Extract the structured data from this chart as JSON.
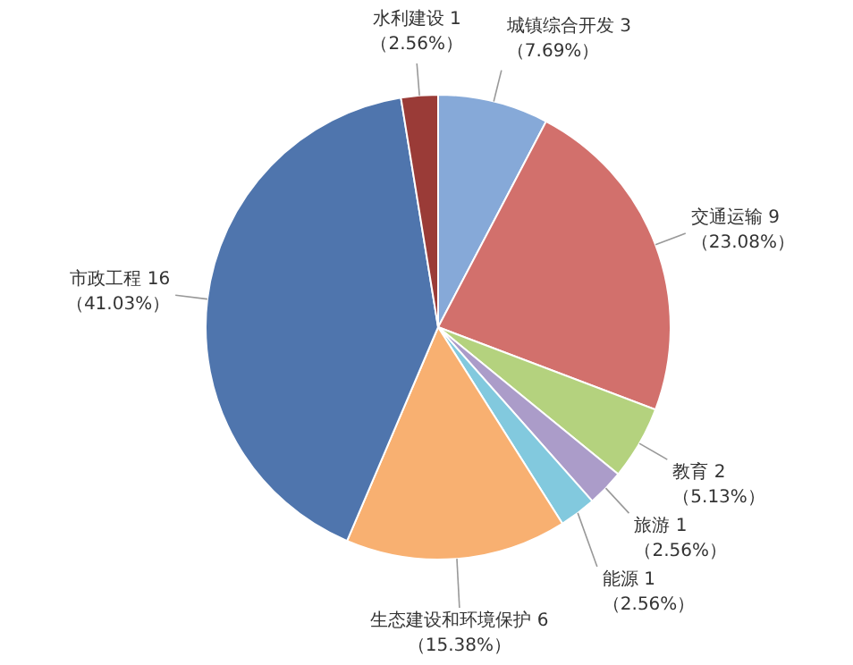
{
  "chart_data": {
    "type": "pie",
    "categories": [
      "城镇综合开发 3",
      "交通运输 9",
      "教育 2",
      "旅游 1",
      "能源 1",
      "生态建设和环境保护 6",
      "市政工程 16",
      "水利建设 1"
    ],
    "values": [
      7.69,
      23.08,
      5.13,
      2.56,
      2.56,
      15.38,
      41.03,
      2.56
    ],
    "value_labels": [
      "（7.69%）",
      "（23.08%）",
      "（5.13%）",
      "（2.56%）",
      "（2.56%）",
      "（15.38%）",
      "（41.03%）",
      "（2.56%）"
    ],
    "colors": [
      "#86a9d8",
      "#d2706c",
      "#b4d27e",
      "#ab9cc9",
      "#82c9de",
      "#f8b071",
      "#4f75ad",
      "#9a3b37"
    ]
  }
}
